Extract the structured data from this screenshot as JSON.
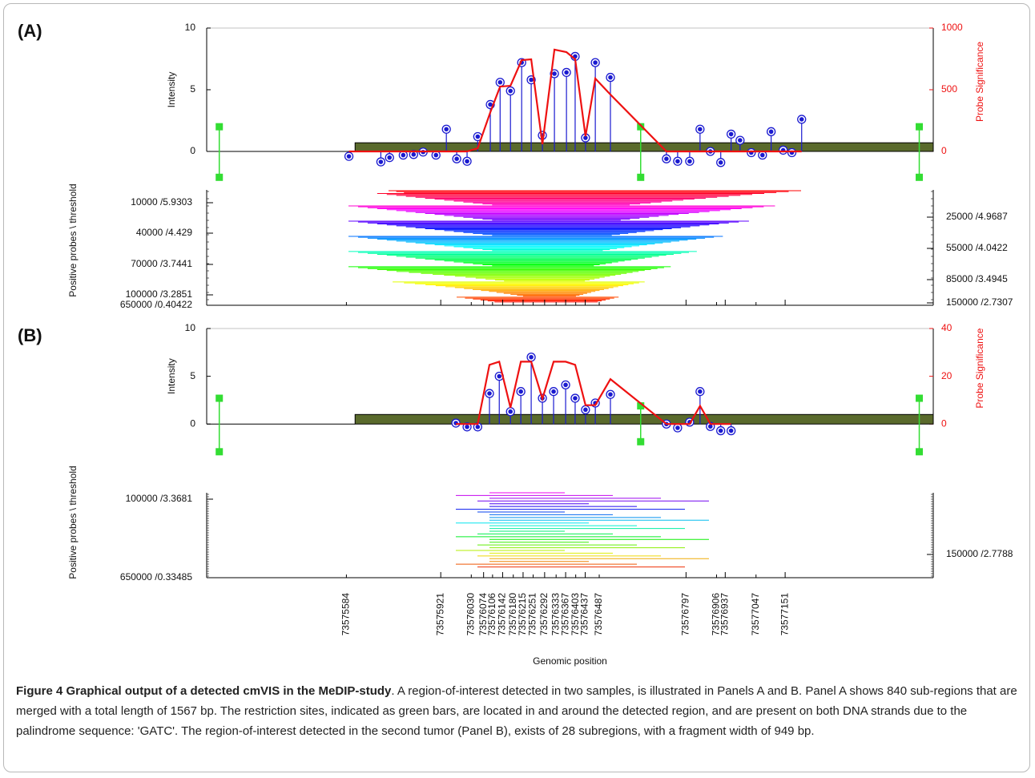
{
  "chart_data": [
    {
      "type": "lollipop",
      "panel_label": "(A)",
      "ylabel": "Intensity",
      "y2label": "Probe Significance",
      "rows_label": "Positive probes \\ threshold",
      "xlim": [
        73575085,
        73577680
      ],
      "ylim": [
        -2.6,
        10
      ],
      "yticks": [
        0,
        5,
        10
      ],
      "y2lim": [
        -260,
        1000
      ],
      "y2ticks": [
        0,
        500,
        1000
      ],
      "xticks": [
        73575584,
        73575921,
        73576030,
        73576074,
        73576106,
        73576142,
        73576180,
        73576215,
        73576251,
        73576292,
        73576333,
        73576367,
        73576403,
        73576437,
        73576487,
        73576797,
        73576906,
        73576937,
        73577047,
        73577151
      ],
      "x": [
        73575593,
        73575707,
        73575738,
        73575787,
        73575824,
        73575858,
        73575904,
        73575941,
        73575978,
        73576015,
        73576053,
        73576098,
        73576133,
        73576170,
        73576210,
        73576244,
        73576284,
        73576327,
        73576370,
        73576401,
        73576438,
        73576473,
        73576527,
        73576727,
        73576767,
        73576810,
        73576847,
        73576884,
        73576921,
        73576958,
        73576990,
        73577030,
        73577070,
        73577101,
        73577144,
        73577175,
        73577210
      ],
      "intensity": [
        -0.4,
        -0.85,
        -0.5,
        -0.3,
        -0.25,
        -0.05,
        -0.3,
        1.8,
        -0.6,
        -0.8,
        1.2,
        3.8,
        5.6,
        4.9,
        7.2,
        5.8,
        1.3,
        6.3,
        6.4,
        7.7,
        1.1,
        7.2,
        6.0,
        -0.6,
        -0.8,
        -0.8,
        1.8,
        0,
        -0.9,
        1.4,
        0.9,
        -0.1,
        -0.3,
        1.6,
        0.1,
        -0.1,
        2.6
      ],
      "significance": [
        0,
        0,
        0,
        0,
        0,
        0,
        0,
        0,
        0,
        0,
        25,
        318,
        526,
        532,
        740,
        747,
        58,
        825,
        805,
        747,
        123,
        591,
        461,
        0,
        0,
        0,
        0,
        0,
        0,
        0,
        0,
        0,
        0,
        0,
        0,
        0,
        0
      ],
      "restriction_sites": {
        "x": [
          73575130,
          73576635,
          73577630
        ],
        "top": [
          2,
          2,
          2
        ],
        "bottom": [
          -2.1,
          -2.1,
          -2.1
        ]
      },
      "region": {
        "start": 73575615,
        "height": 0.7
      },
      "threshold_labels_left": [
        "10000 /5.9303",
        "40000 /4.429",
        "70000 /3.7441",
        "100000 /3.2851",
        "650000 /0.40422"
      ],
      "threshold_labels_right": [
        "25000 /4.9687",
        "55000 /4.0422",
        "85000 /3.4945",
        "150000 /2.7307"
      ],
      "point_color": "#1a1ad0",
      "line_color": "#ee1111",
      "site_color": "#33dd33",
      "region_color": "#5a6a2c"
    },
    {
      "type": "lollipop",
      "panel_label": "(B)",
      "ylabel": "Intensity",
      "y2label": "Probe Significance",
      "rows_label": "Positive probes \\ threshold",
      "xlim": [
        73575085,
        73577680
      ],
      "ylim": [
        -3,
        10
      ],
      "yticks": [
        0,
        5,
        10
      ],
      "y2lim": [
        -12,
        40
      ],
      "y2ticks": [
        0,
        20,
        40
      ],
      "xticks": [
        73575584,
        73575921,
        73576030,
        73576074,
        73576106,
        73576142,
        73576180,
        73576215,
        73576251,
        73576292,
        73576333,
        73576367,
        73576403,
        73576437,
        73576487,
        73576797,
        73576906,
        73576937,
        73577047,
        73577151
      ],
      "xlabel": "Genomic position",
      "x": [
        73575975,
        73576015,
        73576053,
        73576095,
        73576130,
        73576170,
        73576207,
        73576244,
        73576284,
        73576324,
        73576367,
        73576401,
        73576438,
        73576473,
        73576527,
        73576727,
        73576767,
        73576810,
        73576847,
        73576884,
        73576921,
        73576958
      ],
      "intensity": [
        0.1,
        -0.3,
        -0.3,
        3.2,
        5.0,
        1.3,
        3.4,
        7.0,
        2.7,
        3.4,
        4.1,
        2.7,
        1.5,
        2.2,
        3.1,
        0,
        -0.4,
        0.2,
        3.4,
        -0.25,
        -0.7,
        -0.7
      ],
      "significance": [
        0,
        0,
        0,
        24.8,
        26.1,
        6.9,
        26.1,
        26.1,
        10.6,
        26.1,
        26.1,
        24.8,
        7.9,
        7.9,
        18.8,
        0,
        0,
        0,
        7.6,
        0,
        0,
        0
      ],
      "restriction_sites": {
        "x": [
          73575130,
          73576635,
          73577630
        ],
        "top": [
          2.7,
          1.9,
          2.7
        ],
        "bottom": [
          -2.9,
          -1.85,
          -2.9
        ]
      },
      "region": {
        "start": 73575615,
        "height": 1.0
      },
      "threshold_labels_left": [
        "100000 /3.3681",
        "650000 /0.33485"
      ],
      "threshold_labels_right": [
        "150000 /2.7788"
      ],
      "point_color": "#1a1ad0",
      "line_color": "#ee1111",
      "site_color": "#33dd33",
      "region_color": "#5a6a2c"
    }
  ],
  "caption": {
    "title": "Figure 4 Graphical output of a detected cmVIS in the MeDIP-study",
    "text": ". A region-of-interest detected in two samples, is illustrated in Panels A and B. Panel A shows 840 sub-regions that are merged with a total length of 1567 bp. The restriction sites, indicated as green bars, are located in and around the detected region, and are present on both DNA strands due to the palindrome sequence: 'GATC'. The region-of-interest detected in the second tumor (Panel B), exists of 28 subregions, with a fragment width of 949 bp."
  }
}
